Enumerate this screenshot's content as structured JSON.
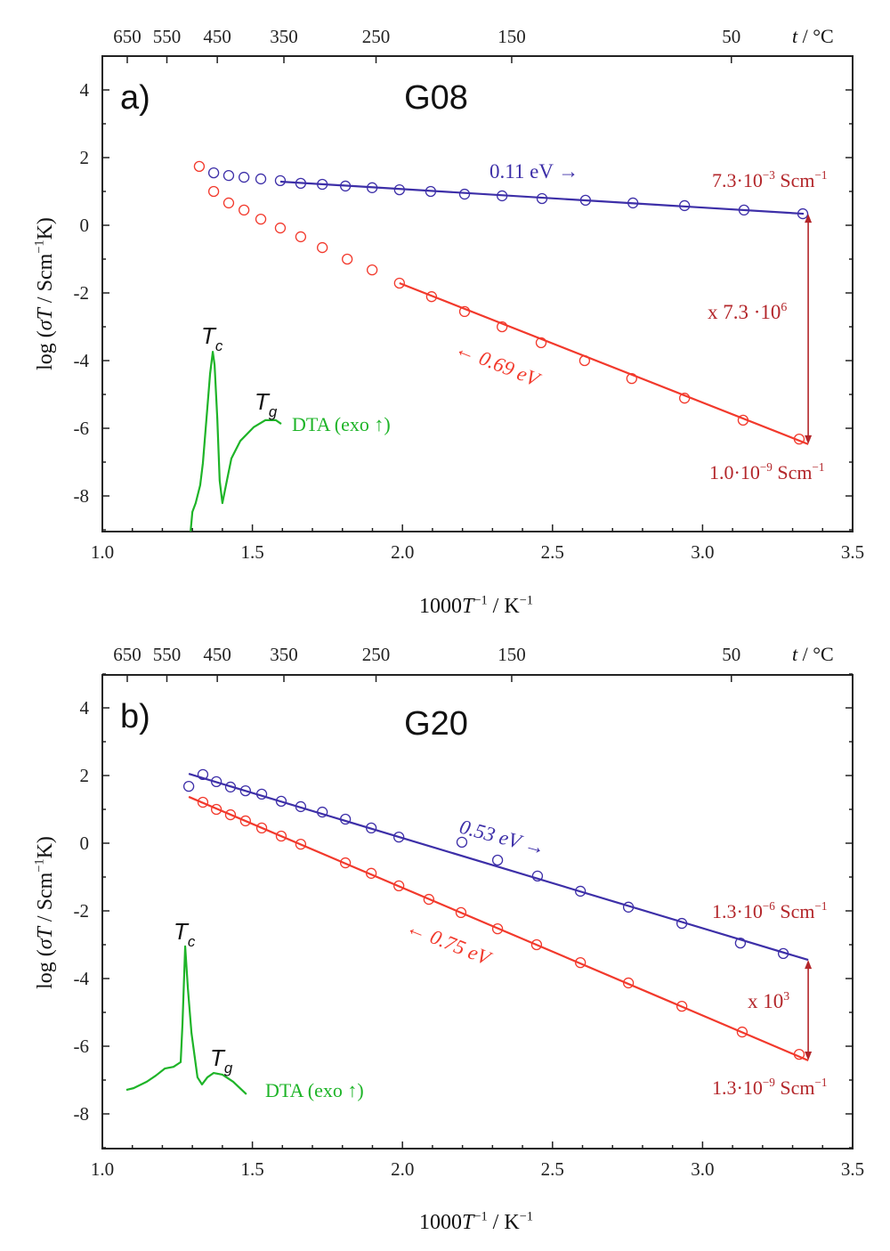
{
  "colors": {
    "blue": "#3d2fa8",
    "red": "#f2392c",
    "darkred": "#b3262a",
    "green": "#1eb428",
    "axis": "#222222"
  },
  "chart_data": [
    {
      "type": "scatter",
      "panel_label": "a)",
      "title": "G08",
      "xlabel": [
        [
          "1000",
          ""
        ],
        [
          "T",
          "i"
        ],
        [
          "−1",
          "sup"
        ],
        [
          " / K",
          ""
        ],
        [
          "−1",
          "sup"
        ]
      ],
      "ylabel": [
        [
          "log (",
          ""
        ],
        [
          "σT",
          "i"
        ],
        [
          " / Scm",
          ""
        ],
        [
          "−1",
          "sup"
        ],
        [
          "K)",
          ""
        ]
      ],
      "top_axis_label": [
        [
          "t",
          "i"
        ],
        [
          " / °C",
          ""
        ]
      ],
      "xlim": [
        1.0,
        3.5
      ],
      "ylim": [
        -9,
        5
      ],
      "x_ticks": [
        "1.0",
        "1.5",
        "2.0",
        "2.5",
        "3.0",
        "3.5"
      ],
      "y_ticks": [
        "-8",
        "-6",
        "-4",
        "-2",
        "0",
        "2",
        "4"
      ],
      "top_ticks": [
        {
          "t": "650",
          "x": 1.083
        },
        {
          "t": "550",
          "x": 1.215
        },
        {
          "t": "450",
          "x": 1.383
        },
        {
          "t": "350",
          "x": 1.605
        },
        {
          "t": "250",
          "x": 1.912
        },
        {
          "t": "150",
          "x": 2.364
        },
        {
          "t": "50",
          "x": 3.096
        }
      ],
      "series": [
        {
          "name": "blue",
          "x": [
            1.371,
            1.421,
            1.472,
            1.528,
            1.593,
            1.661,
            1.733,
            1.81,
            1.899,
            1.99,
            2.094,
            2.207,
            2.332,
            2.465,
            2.61,
            2.768,
            2.94,
            3.138,
            3.334
          ],
          "y": [
            1.55,
            1.47,
            1.42,
            1.37,
            1.32,
            1.24,
            1.21,
            1.16,
            1.11,
            1.05,
            1.0,
            0.92,
            0.87,
            0.79,
            0.74,
            0.66,
            0.58,
            0.45,
            0.34
          ],
          "fit": {
            "x": [
              1.593,
              3.337
            ],
            "y": [
              1.29,
              0.34
            ]
          }
        },
        {
          "name": "red",
          "x": [
            1.323,
            1.371,
            1.421,
            1.472,
            1.528,
            1.593,
            1.661,
            1.733,
            1.816,
            1.899,
            1.99,
            2.097,
            2.207,
            2.332,
            2.462,
            2.607,
            2.764,
            2.94,
            3.135,
            3.322
          ],
          "y": [
            1.74,
            1.0,
            0.66,
            0.45,
            0.18,
            -0.08,
            -0.34,
            -0.66,
            -1.0,
            -1.32,
            -1.71,
            -2.11,
            -2.55,
            -3.0,
            -3.47,
            -4.0,
            -4.53,
            -5.11,
            -5.76,
            -6.32
          ],
          "fit": {
            "x": [
              1.99,
              3.352
            ],
            "y": [
              -1.71,
              -6.47
            ]
          }
        }
      ],
      "dta": {
        "x": [
          1.294,
          1.3,
          1.311,
          1.326,
          1.335,
          1.347,
          1.359,
          1.368,
          1.374,
          1.383,
          1.391,
          1.4,
          1.412,
          1.43,
          1.46,
          1.504,
          1.543,
          1.578,
          1.596
        ],
        "y": [
          -9.05,
          -8.47,
          -8.21,
          -7.68,
          -7.03,
          -5.71,
          -4.39,
          -3.74,
          -4.13,
          -5.71,
          -7.55,
          -8.21,
          -7.68,
          -6.89,
          -6.37,
          -5.97,
          -5.76,
          -5.76,
          -5.87
        ]
      },
      "arrow": {
        "x": 3.352,
        "y_from": 0.34,
        "y_to": -6.47
      },
      "annotations": {
        "blue_ea": [
          [
            "0.11 eV →",
            ""
          ]
        ],
        "red_ea": [
          [
            "← 0.69 eV",
            "i"
          ]
        ],
        "sigma_blue": [
          [
            "7.3·10",
            ""
          ],
          [
            "−3",
            "sup"
          ],
          [
            " Scm",
            ""
          ],
          [
            "−1",
            "sup"
          ]
        ],
        "sigma_red": [
          [
            "1.0·10",
            ""
          ],
          [
            "−9",
            "sup"
          ],
          [
            " Scm",
            ""
          ],
          [
            "−1",
            "sup"
          ]
        ],
        "ratio": [
          [
            "x 7.3 ·10",
            ""
          ],
          [
            "6",
            "sup"
          ]
        ],
        "tc": [
          [
            "T",
            "i"
          ],
          [
            "c",
            "sub"
          ]
        ],
        "tg": [
          [
            "T",
            "i"
          ],
          [
            "g",
            "sub"
          ]
        ],
        "dta": [
          [
            "DTA (exo ↑)",
            ""
          ]
        ]
      }
    },
    {
      "type": "scatter",
      "panel_label": "b)",
      "title": "G20",
      "xlabel": [
        [
          "1000",
          ""
        ],
        [
          "T",
          "i"
        ],
        [
          "−1",
          "sup"
        ],
        [
          " / K",
          ""
        ],
        [
          "−1",
          "sup"
        ]
      ],
      "ylabel": [
        [
          "log (",
          ""
        ],
        [
          "σT",
          "i"
        ],
        [
          " / Scm",
          ""
        ],
        [
          "−1",
          "sup"
        ],
        [
          "K)",
          ""
        ]
      ],
      "top_axis_label": [
        [
          "t",
          "i"
        ],
        [
          " / °C",
          ""
        ]
      ],
      "xlim": [
        1.0,
        3.5
      ],
      "ylim": [
        -9,
        5
      ],
      "x_ticks": [
        "1.0",
        "1.5",
        "2.0",
        "2.5",
        "3.0",
        "3.5"
      ],
      "y_ticks": [
        "-8",
        "-6",
        "-4",
        "-2",
        "0",
        "2",
        "4"
      ],
      "top_ticks": [
        {
          "t": "650",
          "x": 1.083
        },
        {
          "t": "550",
          "x": 1.215
        },
        {
          "t": "450",
          "x": 1.383
        },
        {
          "t": "350",
          "x": 1.605
        },
        {
          "t": "250",
          "x": 1.912
        },
        {
          "t": "150",
          "x": 2.364
        },
        {
          "t": "50",
          "x": 3.096
        }
      ],
      "series": [
        {
          "name": "blue",
          "x": [
            1.288,
            1.335,
            1.38,
            1.427,
            1.477,
            1.531,
            1.596,
            1.661,
            1.733,
            1.81,
            1.896,
            1.988,
            2.198,
            2.317,
            2.45,
            2.593,
            2.753,
            2.931,
            3.126,
            3.269
          ],
          "y": [
            1.68,
            2.03,
            1.82,
            1.66,
            1.55,
            1.45,
            1.24,
            1.08,
            0.92,
            0.71,
            0.45,
            0.18,
            0.03,
            -0.5,
            -0.97,
            -1.42,
            -1.89,
            -2.37,
            -2.95,
            -3.26
          ],
          "fit": {
            "x": [
              1.288,
              3.352
            ],
            "y": [
              2.05,
              -3.45
            ]
          }
        },
        {
          "name": "red",
          "x": [
            1.335,
            1.38,
            1.427,
            1.477,
            1.531,
            1.596,
            1.661,
            1.81,
            1.896,
            1.988,
            2.088,
            2.195,
            2.317,
            2.447,
            2.593,
            2.753,
            2.931,
            3.132,
            3.322
          ],
          "y": [
            1.21,
            1.0,
            0.84,
            0.66,
            0.45,
            0.21,
            -0.03,
            -0.58,
            -0.89,
            -1.26,
            -1.66,
            -2.05,
            -2.53,
            -3.0,
            -3.53,
            -4.13,
            -4.82,
            -5.58,
            -6.24
          ],
          "fit": {
            "x": [
              1.288,
              3.352
            ],
            "y": [
              1.37,
              -6.42
            ]
          }
        }
      ],
      "dta": {
        "x": [
          1.08,
          1.104,
          1.148,
          1.178,
          1.208,
          1.237,
          1.261,
          1.267,
          1.276,
          1.285,
          1.297,
          1.317,
          1.332,
          1.35,
          1.371,
          1.4,
          1.436,
          1.48
        ],
        "y": [
          -7.29,
          -7.24,
          -7.05,
          -6.87,
          -6.66,
          -6.61,
          -6.47,
          -5.34,
          -3.05,
          -4.29,
          -5.61,
          -6.92,
          -7.13,
          -6.92,
          -6.79,
          -6.84,
          -7.05,
          -7.42
        ]
      },
      "arrow": {
        "x": 3.352,
        "y_from": -3.45,
        "y_to": -6.42
      },
      "annotations": {
        "blue_ea": [
          [
            "0.53 eV →",
            "i"
          ]
        ],
        "red_ea": [
          [
            "← 0.75 eV",
            "i"
          ]
        ],
        "sigma_blue": [
          [
            "1.3·10",
            ""
          ],
          [
            "−6",
            "sup"
          ],
          [
            " Scm",
            ""
          ],
          [
            "−1",
            "sup"
          ]
        ],
        "sigma_red": [
          [
            "1.3·10",
            ""
          ],
          [
            "−9",
            "sup"
          ],
          [
            " Scm",
            ""
          ],
          [
            "−1",
            "sup"
          ]
        ],
        "ratio": [
          [
            "x 10",
            ""
          ],
          [
            "3",
            "sup"
          ]
        ],
        "tc": [
          [
            "T",
            "i"
          ],
          [
            "c",
            "sub"
          ]
        ],
        "tg": [
          [
            "T",
            "i"
          ],
          [
            "g",
            "sub"
          ]
        ],
        "dta": [
          [
            "DTA (exo ↑)",
            ""
          ]
        ]
      }
    }
  ]
}
